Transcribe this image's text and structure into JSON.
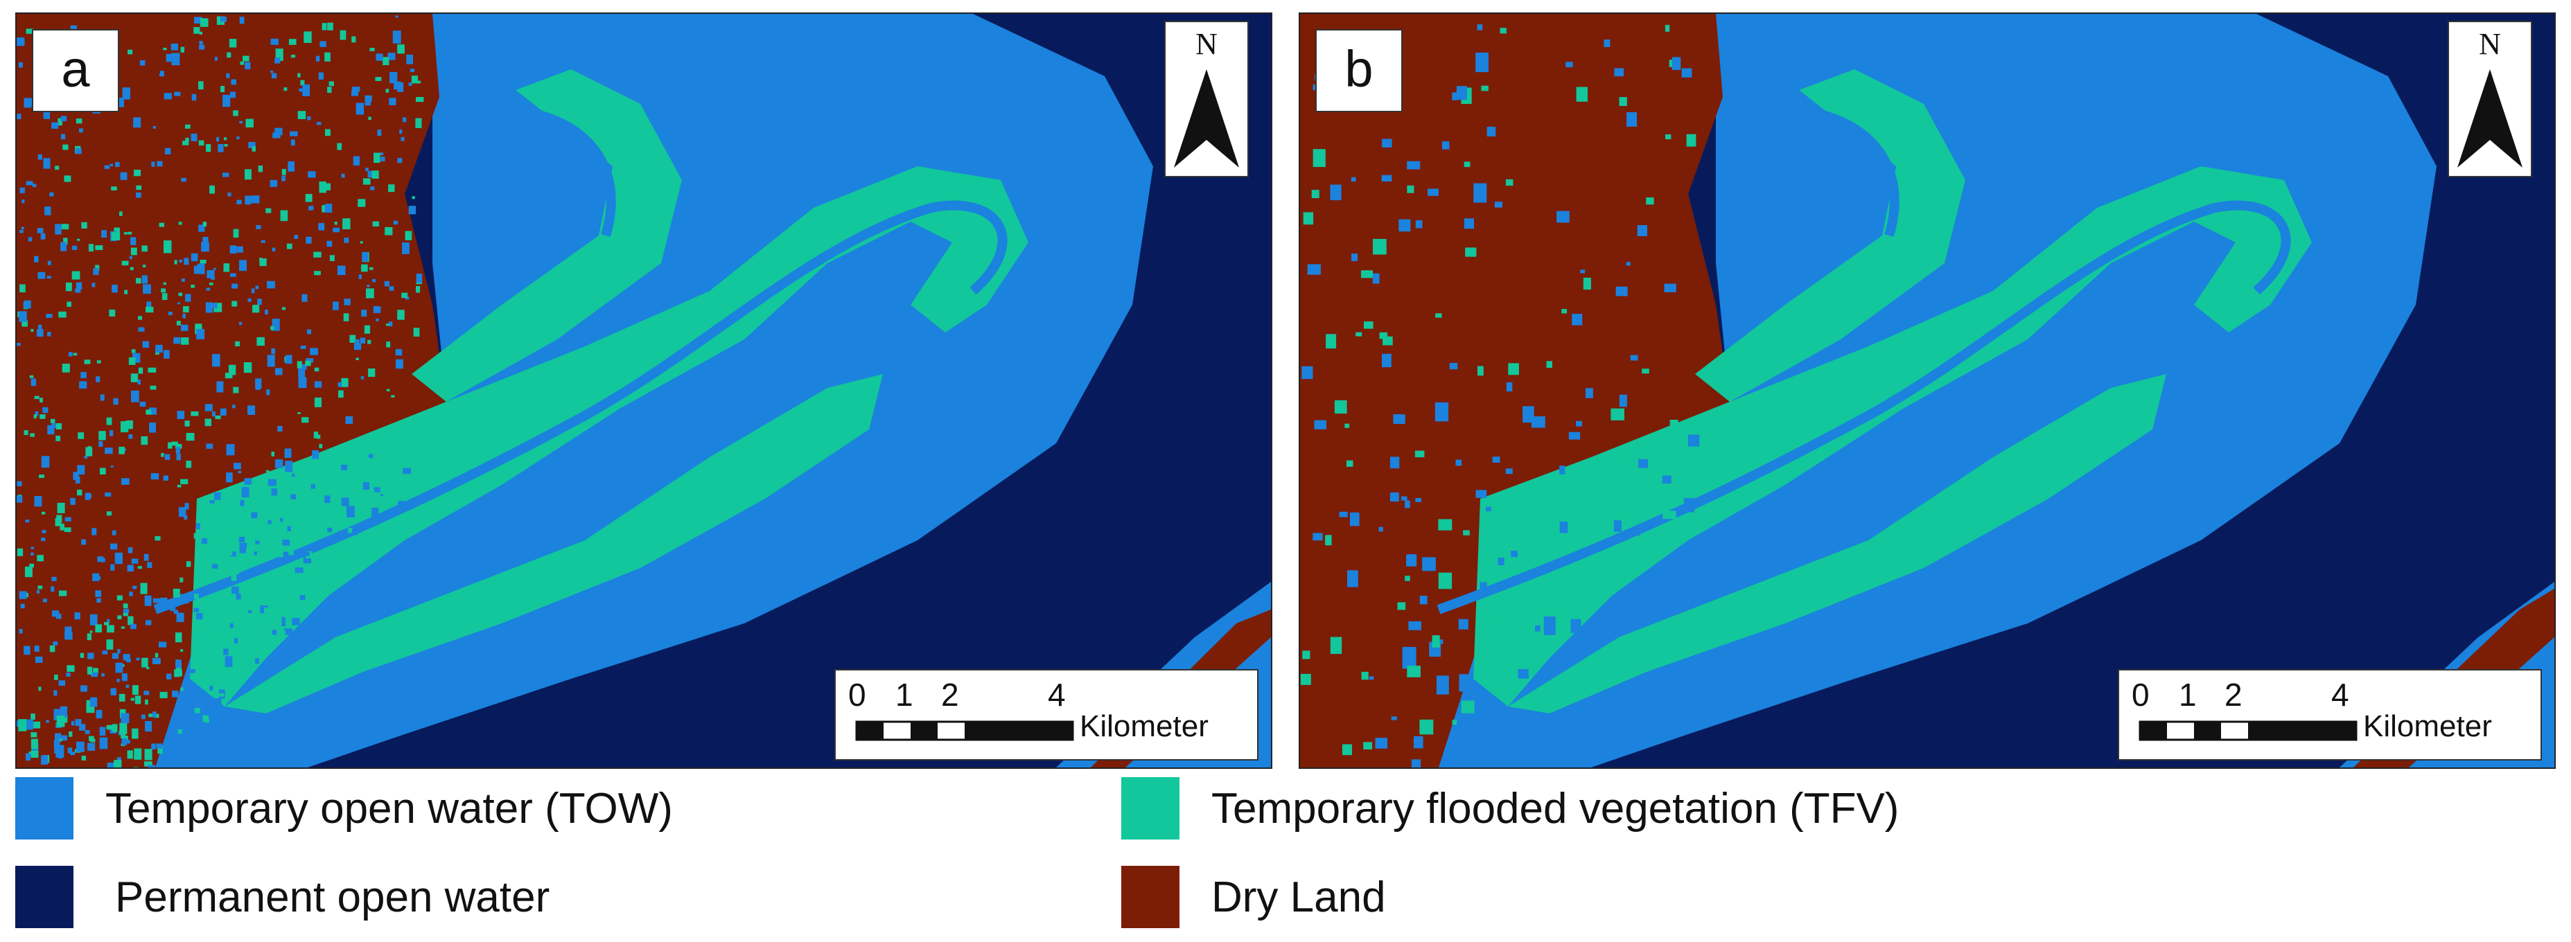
{
  "panels": [
    {
      "letter": "a",
      "variant": "a"
    },
    {
      "letter": "b",
      "variant": "b"
    }
  ],
  "north_arrow": {
    "label": "N"
  },
  "scale_bar": {
    "ticks": [
      "0",
      "1",
      "2",
      "4"
    ],
    "unit": "Kilometer"
  },
  "colors": {
    "temporary_open_water": "#1b82dd",
    "permanent_open_water": "#071b5c",
    "temporary_flooded_vegetation": "#12c79b",
    "dry_land": "#7c1d06"
  },
  "legend": {
    "tow": "Temporary open water (TOW)",
    "pow": "Permanent open water",
    "tfv": "Temporary flooded vegetation (TFV)",
    "dry": "Dry Land"
  }
}
